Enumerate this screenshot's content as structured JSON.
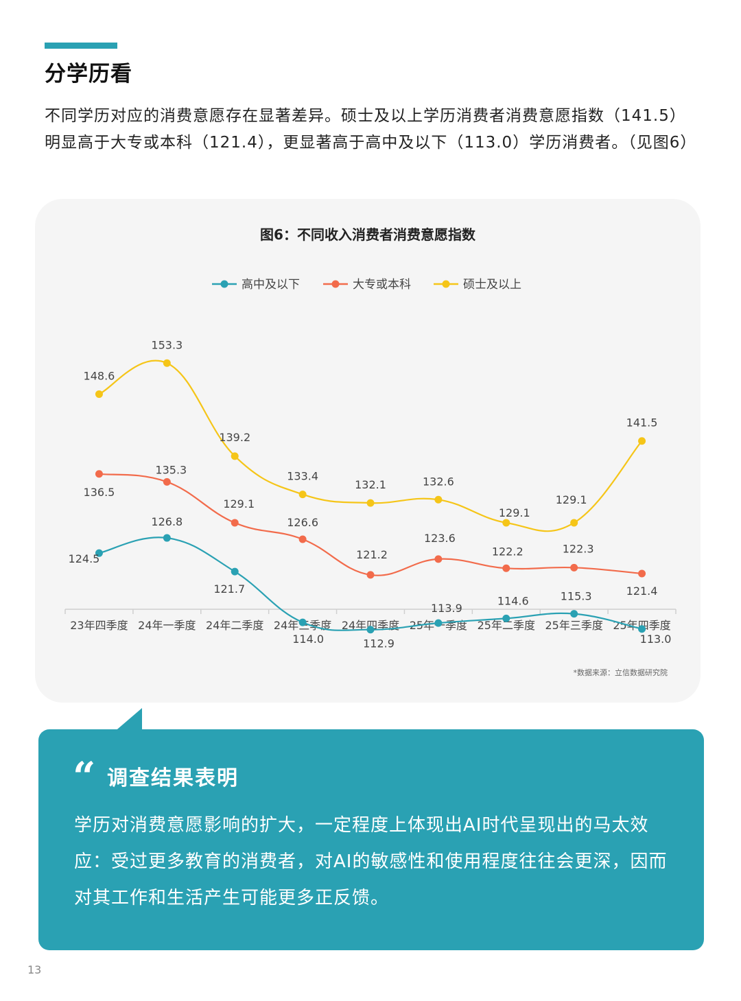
{
  "section_title": "分学历看",
  "intro_text": "不同学历对应的消费意愿存在显著差异。硕士及以上学历消费者消费意愿指数（141.5）明显高于大专或本科（121.4），更显著高于高中及以下（113.0）学历消费者。（见图6）",
  "callout": {
    "title": "调查结果表明",
    "body": "学历对消费意愿影响的扩大，一定程度上体现出AI时代呈现出的马太效应：受过更多教育的消费者，对AI的敏感性和使用程度往往会更深，因而对其工作和生活产生可能更多正反馈。"
  },
  "page_number": "13",
  "colors": {
    "accent": "#2aa1b3",
    "series_teal": "#2aa1b3",
    "series_orange": "#f26b4b",
    "series_yellow": "#f5c518"
  },
  "chart_data": {
    "type": "line",
    "title": "图6：不同收入消费者消费意愿指数",
    "categories": [
      "23年四季度",
      "24年一季度",
      "24年二季度",
      "24年三季度",
      "24年四季度",
      "25年一季度",
      "25年二季度",
      "25年三季度",
      "25年四季度"
    ],
    "series": [
      {
        "name": "高中及以下",
        "color": "#2aa1b3",
        "values": [
          124.5,
          126.8,
          121.7,
          114.0,
          112.9,
          113.9,
          114.6,
          115.3,
          113.0
        ]
      },
      {
        "name": "大专或本科",
        "color": "#f26b4b",
        "values": [
          136.5,
          135.3,
          129.1,
          126.6,
          121.2,
          123.6,
          122.2,
          122.3,
          121.4
        ]
      },
      {
        "name": "硕士及以上",
        "color": "#f5c518",
        "values": [
          148.6,
          153.3,
          139.2,
          133.4,
          132.1,
          132.6,
          129.1,
          129.1,
          141.5
        ]
      }
    ],
    "legend_position": "top",
    "grid": false,
    "source": "*数据来源：立信数据研究院"
  }
}
